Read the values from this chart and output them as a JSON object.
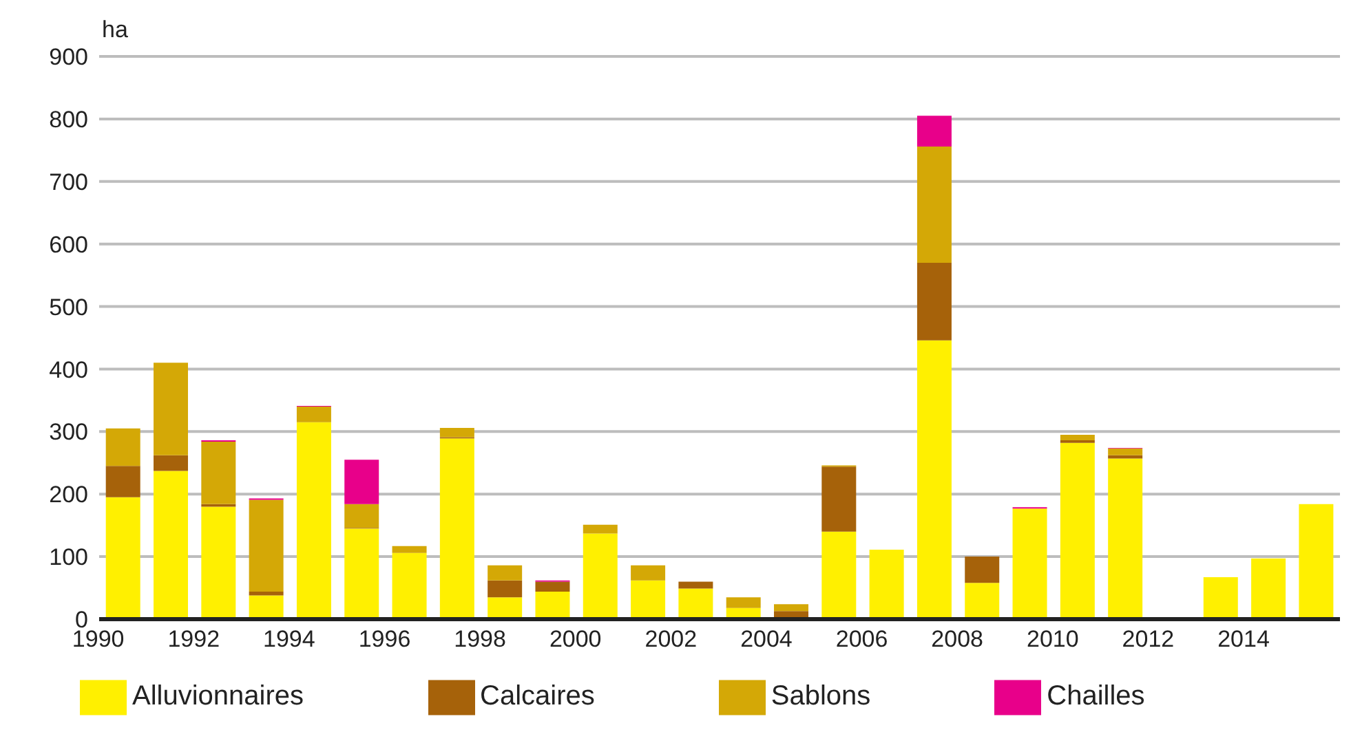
{
  "chart_data": {
    "type": "bar",
    "stacked": true,
    "ylabel": "ha",
    "categories": [
      "1990",
      null,
      "1992",
      null,
      "1994",
      null,
      "1996",
      null,
      "1998",
      null,
      "2000",
      null,
      "2002",
      null,
      "2004",
      null,
      "2006",
      null,
      "2008",
      null,
      "2010",
      null,
      "2012",
      null,
      "2014",
      null
    ],
    "series": [
      {
        "name": "Alluvionnaires",
        "color": "#fff000",
        "values": [
          195,
          237,
          180,
          38,
          315,
          145,
          106,
          289,
          35,
          44,
          137,
          62,
          49,
          18,
          0,
          140,
          111,
          446,
          58,
          177,
          282,
          257,
          0,
          67,
          97,
          184
        ]
      },
      {
        "name": "Calcaires",
        "color": "#a6620a",
        "values": [
          50,
          25,
          4,
          6,
          0,
          1,
          0,
          2,
          27,
          16,
          0,
          0,
          11,
          0,
          13,
          104,
          0,
          124,
          42,
          0,
          4,
          5,
          0,
          0,
          0,
          0
        ]
      },
      {
        "name": "Sablons",
        "color": "#d4a806",
        "values": [
          60,
          148,
          100,
          147,
          25,
          38,
          11,
          15,
          24,
          0,
          14,
          24,
          0,
          17,
          11,
          2,
          0,
          186,
          0,
          0,
          9,
          11,
          0,
          0,
          0,
          0
        ]
      },
      {
        "name": "Chailles",
        "color": "#e8008a",
        "values": [
          0,
          0,
          2,
          2,
          1,
          71,
          0,
          0,
          0,
          2,
          0,
          0,
          0,
          0,
          0,
          0,
          0,
          49,
          0,
          2,
          0,
          1,
          0,
          0,
          0,
          0
        ]
      }
    ],
    "ylim": [
      0,
      900
    ],
    "yticks": [
      0,
      100,
      200,
      300,
      400,
      500,
      600,
      700,
      800,
      900
    ],
    "grid": "y",
    "legend": "bottom"
  }
}
